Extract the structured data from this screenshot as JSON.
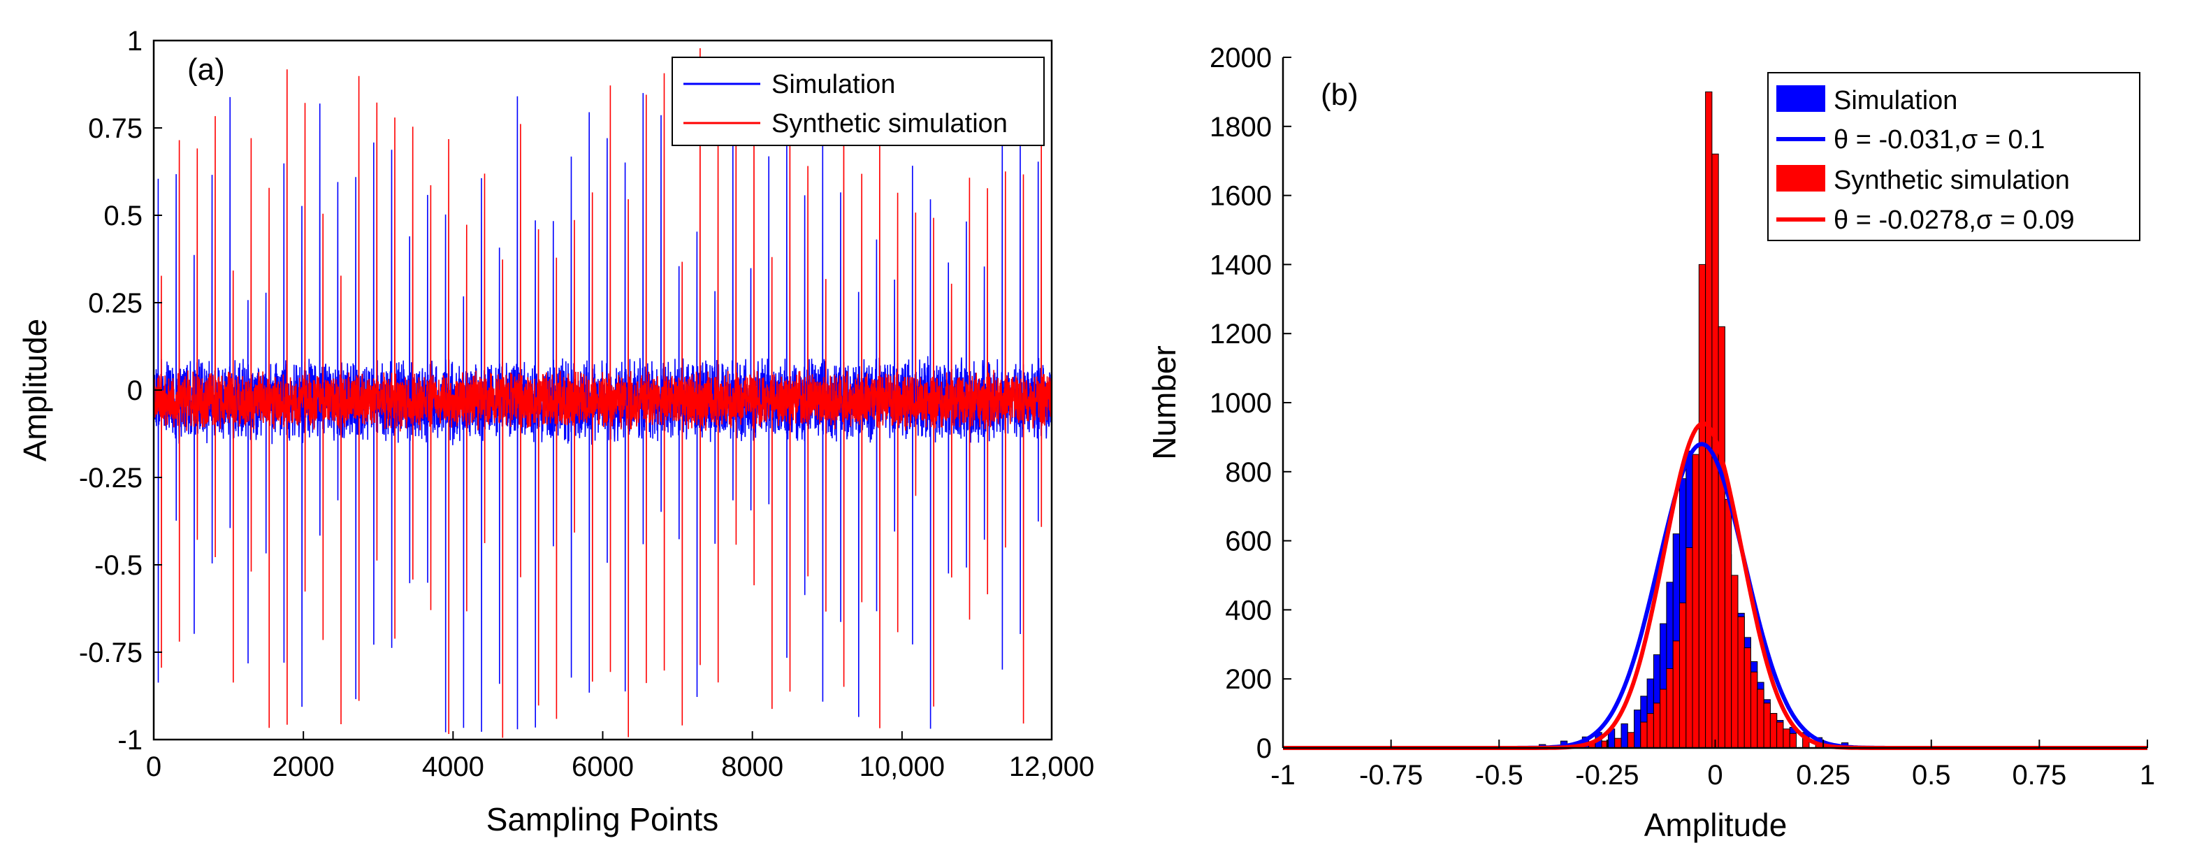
{
  "chart_data": [
    {
      "type": "line",
      "panel_label": "(a)",
      "xlabel": "Sampling Points",
      "ylabel": "Amplitude",
      "xlim": [
        0,
        12000
      ],
      "ylim": [
        -1,
        1
      ],
      "xticks": [
        0,
        2000,
        4000,
        6000,
        8000,
        10000,
        12000
      ],
      "xtick_labels": [
        "0",
        "2000",
        "4000",
        "6000",
        "8000",
        "10,000",
        "12,000"
      ],
      "yticks": [
        1,
        0.75,
        0.5,
        0.25,
        0,
        -0.25,
        -0.5,
        -0.75,
        -1
      ],
      "ytick_labels": [
        "1",
        "0.75",
        "0.5",
        "0.25",
        "0",
        "-0.25",
        "-0.5",
        "-0.75",
        "-1"
      ],
      "legend_position": "top-right",
      "baseline_offset": -0.03,
      "series": [
        {
          "name": "Simulation",
          "color": "#0000ff",
          "noise_amplitude": 0.13,
          "impulse_interval": 240,
          "impulse_start": 60,
          "peak_positive": 0.85,
          "peak_negative": -1.0
        },
        {
          "name": "Synthetic simulation",
          "color": "#ff0000",
          "noise_amplitude": 0.09,
          "impulse_interval": 240,
          "impulse_start": 100,
          "peak_positive": 1.0,
          "peak_negative": -1.0
        }
      ]
    },
    {
      "type": "bar",
      "panel_label": "(b)",
      "xlabel": "Amplitude",
      "ylabel": "Number",
      "xlim": [
        -1,
        1
      ],
      "ylim": [
        0,
        2000
      ],
      "xticks": [
        -1,
        -0.75,
        -0.5,
        -0.25,
        0,
        0.25,
        0.5,
        0.75,
        1
      ],
      "xtick_labels": [
        "-1",
        "-0.75",
        "-0.5",
        "-0.25",
        "0",
        "0.25",
        "0.5",
        "0.75",
        "1"
      ],
      "yticks": [
        0,
        200,
        400,
        600,
        800,
        1000,
        1200,
        1400,
        1600,
        1800,
        2000
      ],
      "ytick_labels": [
        "0",
        "200",
        "400",
        "600",
        "800",
        "1000",
        "1200",
        "1400",
        "1600",
        "1800",
        "2000"
      ],
      "legend_position": "top-right",
      "bin_width": 0.015,
      "series": [
        {
          "name": "Simulation",
          "kind": "histogram",
          "color": "#0000ff",
          "bins": [
            [
              -0.45,
              5
            ],
            [
              -0.4,
              10
            ],
            [
              -0.35,
              20
            ],
            [
              -0.3,
              32
            ],
            [
              -0.27,
              45
            ],
            [
              -0.24,
              55
            ],
            [
              -0.21,
              70
            ],
            [
              -0.18,
              110
            ],
            [
              -0.165,
              150
            ],
            [
              -0.15,
              200
            ],
            [
              -0.135,
              270
            ],
            [
              -0.12,
              360
            ],
            [
              -0.105,
              480
            ],
            [
              -0.09,
              620
            ],
            [
              -0.075,
              780
            ],
            [
              -0.06,
              860
            ],
            [
              -0.045,
              750
            ],
            [
              -0.03,
              640
            ],
            [
              -0.015,
              650
            ],
            [
              0.0,
              760
            ],
            [
              0.015,
              650
            ],
            [
              0.03,
              560
            ],
            [
              0.045,
              470
            ],
            [
              0.06,
              390
            ],
            [
              0.075,
              320
            ],
            [
              0.09,
              250
            ],
            [
              0.105,
              190
            ],
            [
              0.12,
              140
            ],
            [
              0.135,
              100
            ],
            [
              0.15,
              80
            ],
            [
              0.18,
              60
            ],
            [
              0.21,
              45
            ],
            [
              0.24,
              30
            ],
            [
              0.3,
              15
            ],
            [
              0.4,
              5
            ],
            [
              0.5,
              3
            ]
          ]
        },
        {
          "name": "θ = -0.031,σ = 0.1",
          "kind": "normal_fit",
          "color": "#0000ff",
          "mean": -0.031,
          "sigma": 0.1,
          "peak": 880
        },
        {
          "name": "Synthetic simulation",
          "kind": "histogram",
          "color": "#ff0000",
          "bins": [
            [
              -0.375,
              4
            ],
            [
              -0.33,
              8
            ],
            [
              -0.285,
              14
            ],
            [
              -0.255,
              20
            ],
            [
              -0.225,
              28
            ],
            [
              -0.195,
              45
            ],
            [
              -0.165,
              75
            ],
            [
              -0.15,
              100
            ],
            [
              -0.135,
              130
            ],
            [
              -0.12,
              170
            ],
            [
              -0.105,
              230
            ],
            [
              -0.09,
              310
            ],
            [
              -0.075,
              420
            ],
            [
              -0.06,
              580
            ],
            [
              -0.045,
              850
            ],
            [
              -0.03,
              1400
            ],
            [
              -0.015,
              1900
            ],
            [
              0.0,
              1720
            ],
            [
              0.015,
              1220
            ],
            [
              0.03,
              720
            ],
            [
              0.045,
              500
            ],
            [
              0.06,
              380
            ],
            [
              0.075,
              290
            ],
            [
              0.09,
              220
            ],
            [
              0.105,
              170
            ],
            [
              0.12,
              130
            ],
            [
              0.135,
              100
            ],
            [
              0.15,
              75
            ],
            [
              0.165,
              55
            ],
            [
              0.18,
              42
            ],
            [
              0.21,
              30
            ],
            [
              0.24,
              20
            ],
            [
              0.27,
              12
            ],
            [
              0.3,
              6
            ]
          ]
        },
        {
          "name": "θ = -0.0278,σ = 0.09",
          "kind": "normal_fit",
          "color": "#ff0000",
          "mean": -0.0278,
          "sigma": 0.09,
          "peak": 940
        }
      ]
    }
  ]
}
